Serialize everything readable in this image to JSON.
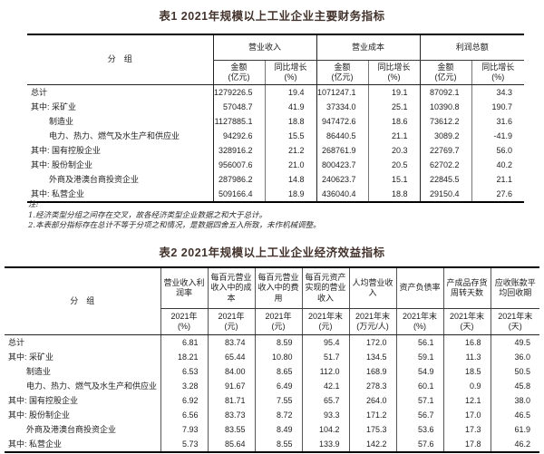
{
  "table1": {
    "title": "表1 2021年规模以上工业企业主要财务指标",
    "group_col_header": "分　组",
    "groups": [
      "营业收入",
      "营业成本",
      "利润总额"
    ],
    "subheaders": [
      "金额\n(亿元)",
      "同比增长\n(%)",
      "金额\n(亿元)",
      "同比增长\n(%)",
      "金额\n(亿元)",
      "同比增长\n(%)"
    ],
    "rows": [
      {
        "label": "总计",
        "indent": 0,
        "values": [
          "1279226.5",
          "19.4",
          "1071247.1",
          "19.1",
          "87092.1",
          "34.3"
        ]
      },
      {
        "label": "其中: 采矿业",
        "indent": 0,
        "values": [
          "57048.7",
          "41.9",
          "37334.0",
          "25.1",
          "10390.8",
          "190.7"
        ]
      },
      {
        "label": "制造业",
        "indent": 1,
        "values": [
          "1127885.1",
          "18.8",
          "947472.6",
          "18.6",
          "73612.2",
          "31.6"
        ]
      },
      {
        "label": "电力、热力、燃气及水生产和供应业",
        "indent": 1,
        "values": [
          "94292.6",
          "15.5",
          "86440.5",
          "21.1",
          "3089.2",
          "-41.9"
        ]
      },
      {
        "label": "其中: 国有控股企业",
        "indent": 0,
        "values": [
          "328916.2",
          "21.2",
          "268761.9",
          "20.3",
          "22769.7",
          "56.0"
        ]
      },
      {
        "label": "其中: 股份制企业",
        "indent": 0,
        "values": [
          "956007.6",
          "21.0",
          "800423.7",
          "20.5",
          "62702.2",
          "40.2"
        ]
      },
      {
        "label": "外商及港澳台商投资企业",
        "indent": 1,
        "values": [
          "287986.2",
          "14.8",
          "240623.7",
          "15.1",
          "22845.5",
          "21.1"
        ]
      },
      {
        "label": "其中: 私营企业",
        "indent": 0,
        "values": [
          "509166.4",
          "18.9",
          "436040.4",
          "18.8",
          "29150.4",
          "27.6"
        ]
      }
    ]
  },
  "notes": {
    "label": "注:",
    "items": [
      "1.经济类型分组之间存在交叉，故各经济类型企业数据之和大于总计。",
      "2.本表部分指标存在总计不等于分项之和情况，是数据四舍五入所致，未作机械调整。"
    ]
  },
  "table2": {
    "title": "表2 2021年规模以上工业企业经济效益指标",
    "group_col_header": "分　组",
    "columns": [
      {
        "name": "营业收入利润率",
        "period": "2021年",
        "unit": "(%)"
      },
      {
        "name": "每百元营业收入中的成本",
        "period": "2021年",
        "unit": "(元)"
      },
      {
        "name": "每百元营业收入中的费用",
        "period": "2021年",
        "unit": "(元)"
      },
      {
        "name": "每百元资产实现的营业收入",
        "period": "2021年末",
        "unit": "(元)"
      },
      {
        "name": "人均营业收入",
        "period": "2021年末",
        "unit": "(万元/人)"
      },
      {
        "name": "资产负债率",
        "period": "2021年末",
        "unit": "(%)"
      },
      {
        "name": "产成品存货周转天数",
        "period": "2021年末",
        "unit": "(天)"
      },
      {
        "name": "应收账款平均回收期",
        "period": "2021年末",
        "unit": "(天)"
      }
    ],
    "rows": [
      {
        "label": "总计",
        "indent": 0,
        "values": [
          "6.81",
          "83.74",
          "8.59",
          "95.4",
          "172.0",
          "56.1",
          "16.8",
          "49.5"
        ]
      },
      {
        "label": "其中: 采矿业",
        "indent": 0,
        "values": [
          "18.21",
          "65.44",
          "10.80",
          "51.7",
          "134.5",
          "59.1",
          "11.3",
          "36.0"
        ]
      },
      {
        "label": "制造业",
        "indent": 1,
        "values": [
          "6.53",
          "84.00",
          "8.65",
          "112.0",
          "168.9",
          "54.9",
          "18.5",
          "50.5"
        ]
      },
      {
        "label": "电力、热力、燃气及水生产和供应业",
        "indent": 1,
        "values": [
          "3.28",
          "91.67",
          "6.49",
          "42.1",
          "278.3",
          "60.1",
          "0.9",
          "45.8"
        ]
      },
      {
        "label": "其中: 国有控股企业",
        "indent": 0,
        "values": [
          "6.92",
          "81.71",
          "7.55",
          "65.7",
          "264.0",
          "57.1",
          "12.1",
          "38.0"
        ]
      },
      {
        "label": "其中: 股份制企业",
        "indent": 0,
        "values": [
          "6.56",
          "83.73",
          "8.72",
          "93.3",
          "171.2",
          "56.7",
          "17.0",
          "46.5"
        ]
      },
      {
        "label": "外商及港澳台商投资企业",
        "indent": 1,
        "values": [
          "7.93",
          "83.55",
          "8.49",
          "104.2",
          "175.3",
          "53.6",
          "17.3",
          "61.9"
        ]
      },
      {
        "label": "其中: 私营企业",
        "indent": 0,
        "values": [
          "5.73",
          "85.64",
          "8.55",
          "133.9",
          "142.2",
          "57.6",
          "17.8",
          "46.2"
        ]
      }
    ]
  }
}
